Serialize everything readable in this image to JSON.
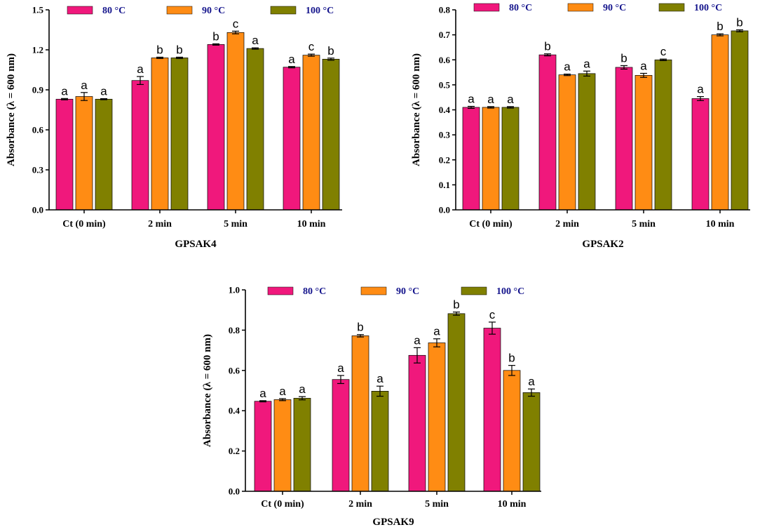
{
  "chart_data": [
    {
      "type": "bar",
      "title": "GPSAK4",
      "xlabel": "GPSAK4",
      "ylabel": "Absorbance (λ = 600 nm)",
      "ylim": [
        0,
        1.5
      ],
      "yticks": [
        "0.0",
        "0.3",
        "0.6",
        "0.9",
        "1.2",
        "1.5"
      ],
      "categories": [
        "Ct (0 min)",
        "2 min",
        "5 min",
        "10 min"
      ],
      "series": [
        {
          "name": "80 °C",
          "color": "#f0187c",
          "values": [
            0.83,
            0.97,
            1.24,
            1.07
          ],
          "errors": [
            0.005,
            0.03,
            0.005,
            0.005
          ],
          "letters": [
            "a",
            "a",
            "b",
            "a"
          ]
        },
        {
          "name": "90 °C",
          "color": "#ff8c14",
          "values": [
            0.85,
            1.14,
            1.33,
            1.16
          ],
          "errors": [
            0.03,
            0.005,
            0.01,
            0.008
          ],
          "letters": [
            "a",
            "b",
            "c",
            "c"
          ]
        },
        {
          "name": "100 °C",
          "color": "#808000",
          "values": [
            0.83,
            1.14,
            1.21,
            1.13
          ],
          "errors": [
            0.004,
            0.005,
            0.005,
            0.008
          ],
          "letters": [
            "a",
            "b",
            "a",
            "b"
          ]
        }
      ]
    },
    {
      "type": "bar",
      "title": "GPSAK2",
      "xlabel": "GPSAK2",
      "ylabel": "Absorbance (λ = 600 nm)",
      "ylim": [
        0,
        0.8
      ],
      "yticks": [
        "0.0",
        "0.1",
        "0.2",
        "0.3",
        "0.4",
        "0.5",
        "0.6",
        "0.7",
        "0.8"
      ],
      "categories": [
        "Ct (0 min)",
        "2 min",
        "5 min",
        "10 min"
      ],
      "series": [
        {
          "name": "80 °C",
          "color": "#f0187c",
          "values": [
            0.41,
            0.62,
            0.57,
            0.445
          ],
          "errors": [
            0.004,
            0.004,
            0.007,
            0.008
          ],
          "letters": [
            "a",
            "b",
            "b",
            "a"
          ]
        },
        {
          "name": "90 °C",
          "color": "#ff8c14",
          "values": [
            0.41,
            0.54,
            0.538,
            0.7
          ],
          "errors": [
            0.003,
            0.003,
            0.008,
            0.004
          ],
          "letters": [
            "a",
            "a",
            "a",
            "b"
          ]
        },
        {
          "name": "100 °C",
          "color": "#808000",
          "values": [
            0.41,
            0.545,
            0.6,
            0.716
          ],
          "errors": [
            0.003,
            0.01,
            0.003,
            0.004
          ],
          "letters": [
            "a",
            "a",
            "c",
            "b"
          ]
        }
      ]
    },
    {
      "type": "bar",
      "title": "GPSAK9",
      "xlabel": "GPSAK9",
      "ylabel": "Absorbance (λ = 600 nm)",
      "ylim": [
        0,
        1.0
      ],
      "yticks": [
        "0.0",
        "0.2",
        "0.4",
        "0.6",
        "0.8",
        "1.0"
      ],
      "categories": [
        "Ct (0 min)",
        "2 min",
        "5 min",
        "10 min"
      ],
      "series": [
        {
          "name": "80 °C",
          "color": "#f0187c",
          "values": [
            0.447,
            0.555,
            0.675,
            0.81
          ],
          "errors": [
            0.003,
            0.02,
            0.038,
            0.03
          ],
          "letters": [
            "a",
            "a",
            "a",
            "c"
          ]
        },
        {
          "name": "90 °C",
          "color": "#ff8c14",
          "values": [
            0.455,
            0.772,
            0.737,
            0.6
          ],
          "errors": [
            0.005,
            0.006,
            0.02,
            0.025
          ],
          "letters": [
            "a",
            "b",
            "a",
            "b"
          ]
        },
        {
          "name": "100 °C",
          "color": "#808000",
          "values": [
            0.462,
            0.497,
            0.882,
            0.49
          ],
          "errors": [
            0.008,
            0.025,
            0.008,
            0.018
          ],
          "letters": [
            "a",
            "a",
            "b",
            "a"
          ]
        }
      ]
    }
  ]
}
